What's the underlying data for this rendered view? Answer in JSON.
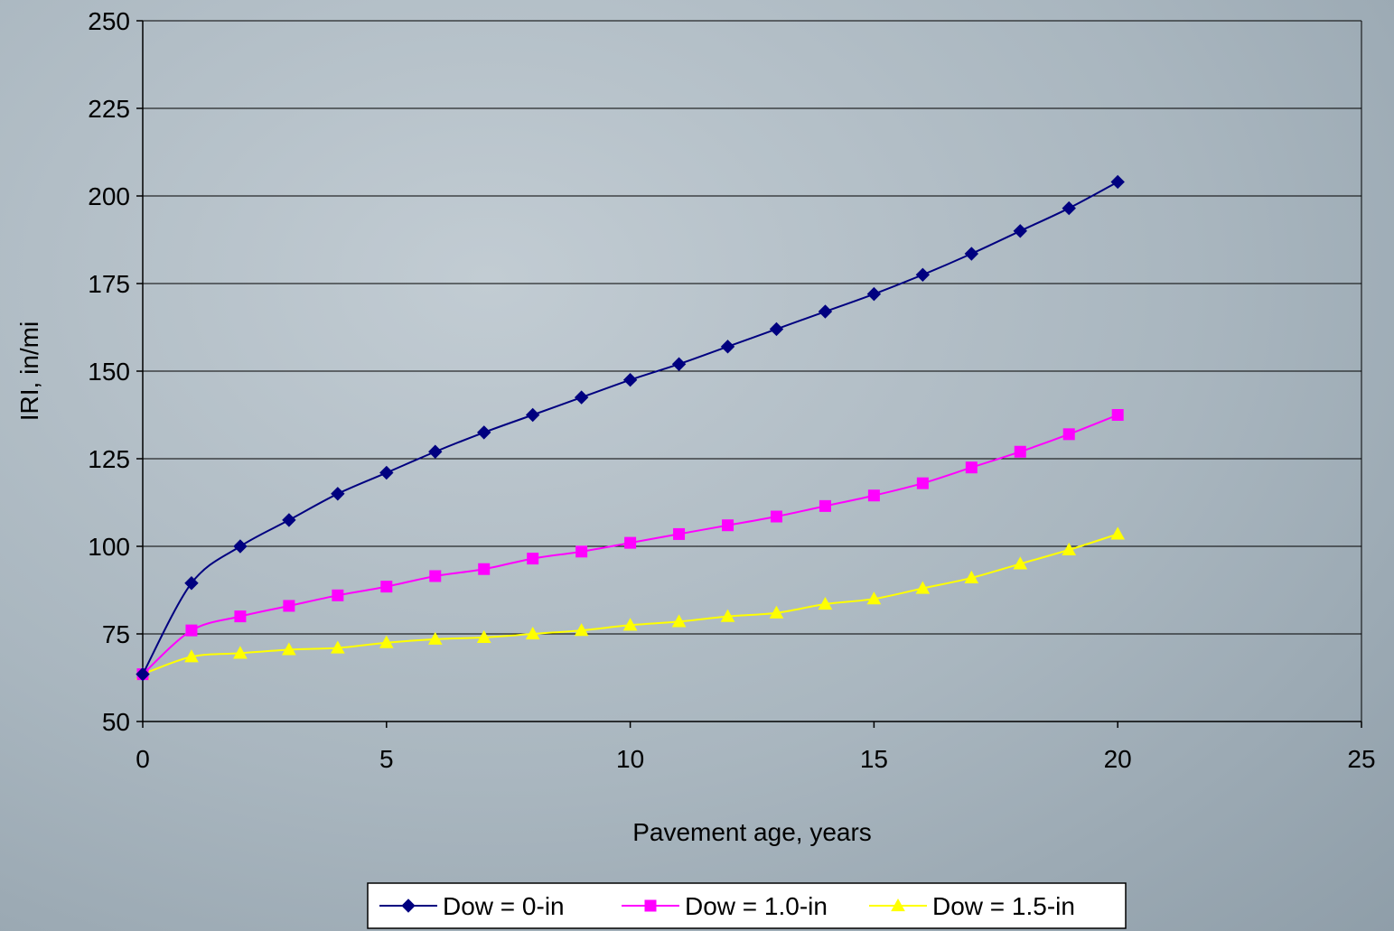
{
  "chart_data": {
    "type": "line",
    "title": "",
    "xlabel": "Pavement age, years",
    "ylabel": "IRI, in/mi",
    "xlim": [
      0,
      25
    ],
    "ylim": [
      50,
      250
    ],
    "x_ticks": [
      0,
      5,
      10,
      15,
      20,
      25
    ],
    "y_ticks": [
      50,
      75,
      100,
      125,
      150,
      175,
      200,
      225,
      250
    ],
    "grid": "horizontal",
    "legend_position": "bottom-center",
    "x": [
      0,
      1,
      2,
      3,
      4,
      5,
      6,
      7,
      8,
      9,
      10,
      11,
      12,
      13,
      14,
      15,
      16,
      17,
      18,
      19,
      20
    ],
    "series": [
      {
        "name": "Dow = 0-in",
        "color": "#000080",
        "marker": "diamond",
        "values": [
          63.5,
          89.5,
          100,
          107.5,
          115,
          121,
          127,
          132.5,
          137.5,
          142.5,
          147.5,
          152,
          157,
          162,
          167,
          172,
          177.5,
          183.5,
          190,
          196.5,
          204
        ]
      },
      {
        "name": "Dow = 1.0-in",
        "color": "#ff00ff",
        "marker": "square",
        "values": [
          63.5,
          76,
          80,
          83,
          86,
          88.5,
          91.5,
          93.5,
          96.5,
          98.5,
          101,
          103.5,
          106,
          108.5,
          111.5,
          114.5,
          118,
          122.5,
          127,
          132,
          137.5
        ]
      },
      {
        "name": "Dow = 1.5-in",
        "color": "#ffff00",
        "marker": "triangle",
        "values": [
          63.5,
          68.5,
          69.5,
          70.5,
          71,
          72.5,
          73.5,
          74,
          75,
          76,
          77.5,
          78.5,
          80,
          81,
          83.5,
          85,
          88,
          91,
          95,
          99,
          103.5
        ]
      }
    ]
  }
}
